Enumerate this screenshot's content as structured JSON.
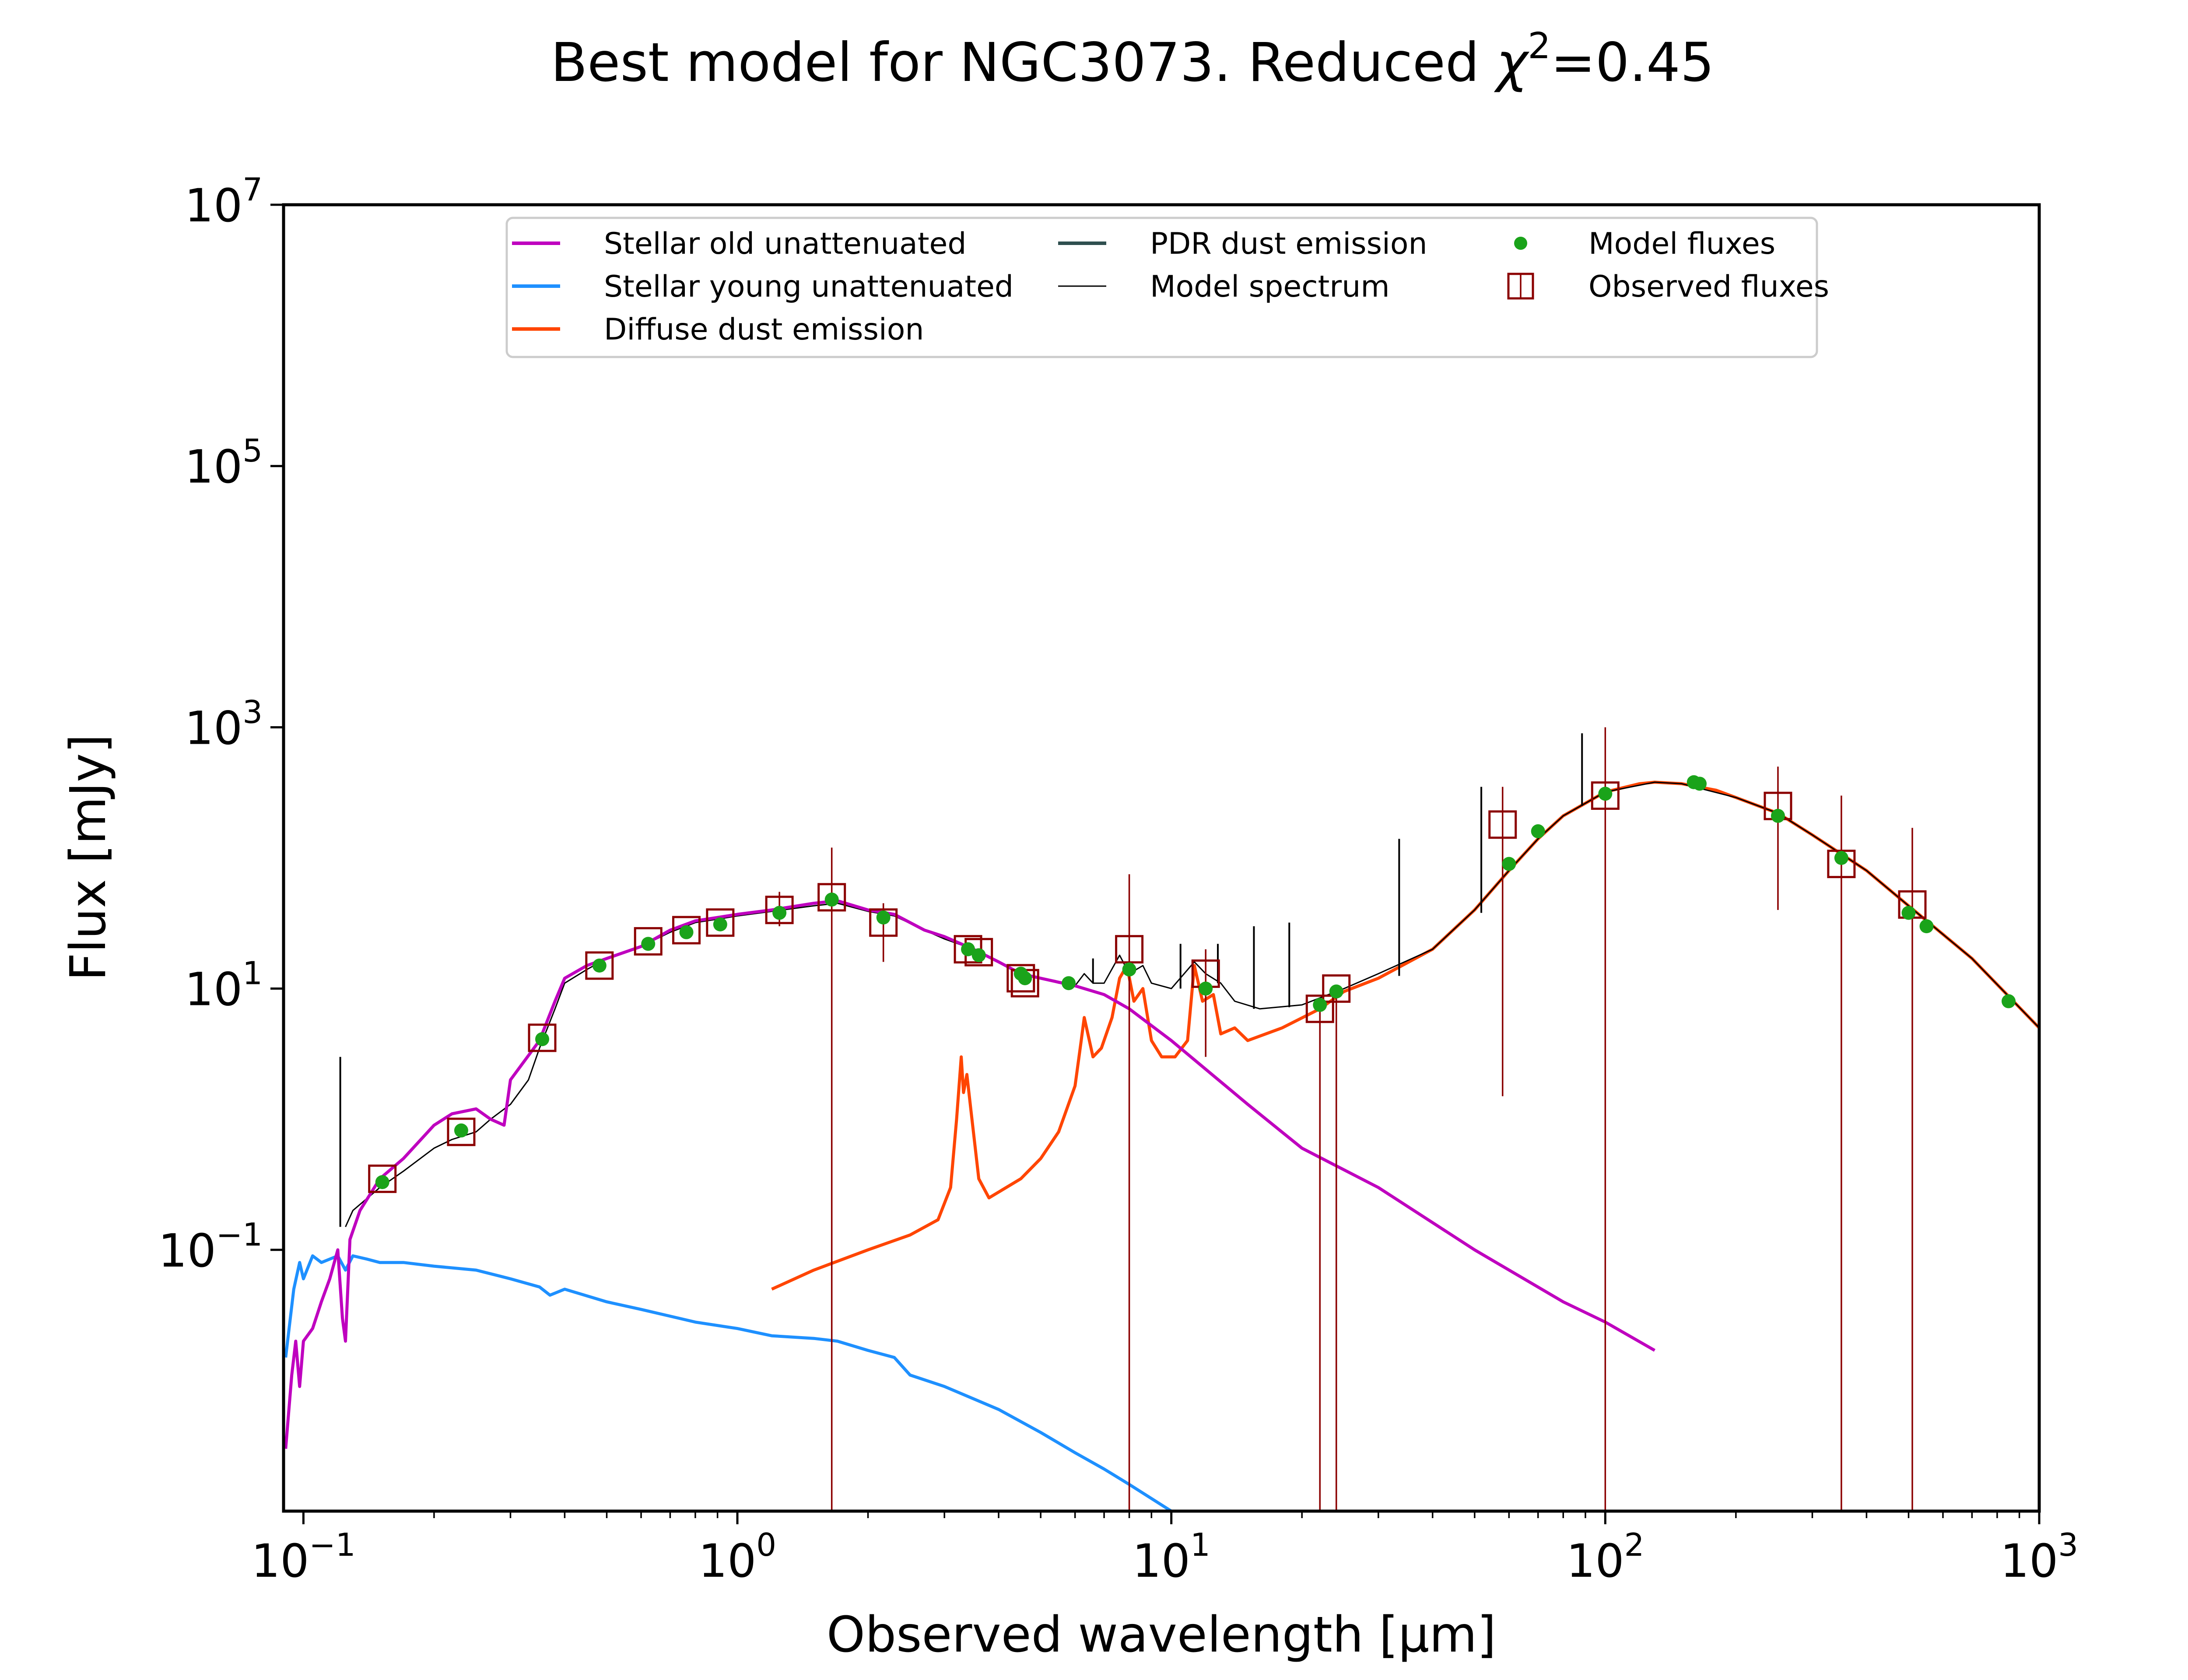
{
  "chart_data": {
    "type": "line",
    "title_prefix": "Best model for NGC3073. Reduced ",
    "title_chi": "χ",
    "title_sup": "2",
    "title_suffix": "=0.45",
    "xlabel": "Observed wavelength [μm]",
    "ylabel": "Flux [mJy]",
    "x_scale": "log",
    "y_scale": "log",
    "xlim": [
      0.09,
      1000
    ],
    "ylim": [
      0.001,
      10000000
    ],
    "grid": false,
    "legend_placement": "top-center",
    "x_ticks": [
      {
        "value": 0.1,
        "base": "10",
        "exp": "−1"
      },
      {
        "value": 1,
        "base": "10",
        "exp": "0"
      },
      {
        "value": 10,
        "base": "10",
        "exp": "1"
      },
      {
        "value": 100,
        "base": "10",
        "exp": "2"
      },
      {
        "value": 1000,
        "base": "10",
        "exp": "3"
      }
    ],
    "y_ticks": [
      {
        "value": 0.1,
        "base": "10",
        "exp": "−1"
      },
      {
        "value": 10,
        "base": "10",
        "exp": "1"
      },
      {
        "value": 1000,
        "base": "10",
        "exp": "3"
      },
      {
        "value": 100000,
        "base": "10",
        "exp": "5"
      },
      {
        "value": 10000000,
        "base": "10",
        "exp": "7"
      }
    ],
    "colors": {
      "stellar_old": "#bf00bf",
      "stellar_young": "#1e90ff",
      "diffuse_dust": "#ff4500",
      "pdr_dust": "#2f4f4f",
      "model_spectrum": "#000000",
      "model_fluxes": "#1aa31a",
      "observed_fluxes": "#8b0000"
    },
    "legend": [
      {
        "key": "stellar_old",
        "label": "Stellar old unattenuated",
        "kind": "line"
      },
      {
        "key": "stellar_young",
        "label": "Stellar young unattenuated",
        "kind": "line"
      },
      {
        "key": "diffuse_dust",
        "label": "Diffuse dust emission",
        "kind": "line"
      },
      {
        "key": "pdr_dust",
        "label": "PDR dust emission",
        "kind": "line"
      },
      {
        "key": "model_spectrum",
        "label": "Model spectrum",
        "kind": "thinline"
      },
      {
        "key": "model_fluxes",
        "label": "Model fluxes",
        "kind": "dot"
      },
      {
        "key": "observed_fluxes",
        "label": "Observed fluxes",
        "kind": "square"
      }
    ],
    "series": [
      {
        "key": "stellar_old",
        "points": [
          [
            0.091,
            0.003
          ],
          [
            0.094,
            0.011
          ],
          [
            0.096,
            0.02
          ],
          [
            0.098,
            0.009
          ],
          [
            0.1,
            0.02
          ],
          [
            0.105,
            0.025
          ],
          [
            0.11,
            0.04
          ],
          [
            0.115,
            0.06
          ],
          [
            0.12,
            0.1
          ],
          [
            0.123,
            0.03
          ],
          [
            0.125,
            0.02
          ],
          [
            0.128,
            0.12
          ],
          [
            0.135,
            0.2
          ],
          [
            0.15,
            0.35
          ],
          [
            0.17,
            0.5
          ],
          [
            0.2,
            0.9
          ],
          [
            0.22,
            1.1
          ],
          [
            0.25,
            1.2
          ],
          [
            0.27,
            1.0
          ],
          [
            0.29,
            0.9
          ],
          [
            0.3,
            2.0
          ],
          [
            0.35,
            4.0
          ],
          [
            0.38,
            8
          ],
          [
            0.4,
            12
          ],
          [
            0.45,
            15
          ],
          [
            0.5,
            17
          ],
          [
            0.6,
            21
          ],
          [
            0.7,
            28
          ],
          [
            0.8,
            33
          ],
          [
            0.9,
            35
          ],
          [
            1.0,
            37
          ],
          [
            1.2,
            40
          ],
          [
            1.5,
            45
          ],
          [
            1.7,
            47
          ],
          [
            2.0,
            40
          ],
          [
            2.3,
            37
          ],
          [
            2.7,
            28
          ],
          [
            3.0,
            25
          ],
          [
            3.5,
            20
          ],
          [
            4.0,
            16
          ],
          [
            4.5,
            13
          ],
          [
            5.0,
            12
          ],
          [
            6.0,
            10.5
          ],
          [
            7.0,
            9
          ],
          [
            8.0,
            7
          ],
          [
            10.0,
            4
          ],
          [
            15.0,
            1.3
          ],
          [
            20.0,
            0.6
          ],
          [
            30.0,
            0.3
          ],
          [
            50.0,
            0.1
          ],
          [
            80.0,
            0.04
          ],
          [
            100.0,
            0.028
          ],
          [
            130.0,
            0.017
          ]
        ]
      },
      {
        "key": "stellar_young",
        "points": [
          [
            0.091,
            0.015
          ],
          [
            0.095,
            0.05
          ],
          [
            0.098,
            0.08
          ],
          [
            0.1,
            0.06
          ],
          [
            0.105,
            0.09
          ],
          [
            0.11,
            0.08
          ],
          [
            0.12,
            0.09
          ],
          [
            0.125,
            0.07
          ],
          [
            0.13,
            0.09
          ],
          [
            0.14,
            0.085
          ],
          [
            0.15,
            0.08
          ],
          [
            0.17,
            0.08
          ],
          [
            0.2,
            0.075
          ],
          [
            0.25,
            0.07
          ],
          [
            0.3,
            0.06
          ],
          [
            0.35,
            0.052
          ],
          [
            0.37,
            0.045
          ],
          [
            0.4,
            0.05
          ],
          [
            0.5,
            0.04
          ],
          [
            0.6,
            0.035
          ],
          [
            0.8,
            0.028
          ],
          [
            1.0,
            0.025
          ],
          [
            1.2,
            0.022
          ],
          [
            1.5,
            0.021
          ],
          [
            1.7,
            0.02
          ],
          [
            2.0,
            0.017
          ],
          [
            2.3,
            0.015
          ],
          [
            2.5,
            0.011
          ],
          [
            3.0,
            0.009
          ],
          [
            4.0,
            0.006
          ],
          [
            5.0,
            0.004
          ],
          [
            6.0,
            0.0028
          ],
          [
            7.0,
            0.0021
          ],
          [
            8.0,
            0.0016
          ],
          [
            10.0,
            0.001
          ]
        ]
      },
      {
        "key": "diffuse_dust",
        "points": [
          [
            1.2,
            0.05
          ],
          [
            1.5,
            0.07
          ],
          [
            2.0,
            0.1
          ],
          [
            2.5,
            0.13
          ],
          [
            2.9,
            0.17
          ],
          [
            3.1,
            0.3
          ],
          [
            3.2,
            1.0
          ],
          [
            3.28,
            3.0
          ],
          [
            3.32,
            1.6
          ],
          [
            3.38,
            2.2
          ],
          [
            3.45,
            1.2
          ],
          [
            3.6,
            0.35
          ],
          [
            3.8,
            0.25
          ],
          [
            4.5,
            0.35
          ],
          [
            5.0,
            0.5
          ],
          [
            5.5,
            0.8
          ],
          [
            6.0,
            1.8
          ],
          [
            6.2,
            4.0
          ],
          [
            6.3,
            6.0
          ],
          [
            6.6,
            3.0
          ],
          [
            6.9,
            3.5
          ],
          [
            7.3,
            6.0
          ],
          [
            7.6,
            12.0
          ],
          [
            7.9,
            15.0
          ],
          [
            8.2,
            8.0
          ],
          [
            8.6,
            10.0
          ],
          [
            9.0,
            4.0
          ],
          [
            9.5,
            3.0
          ],
          [
            10.2,
            3.0
          ],
          [
            10.9,
            4.0
          ],
          [
            11.3,
            15.0
          ],
          [
            11.8,
            8.0
          ],
          [
            12.5,
            9.0
          ],
          [
            13.0,
            4.5
          ],
          [
            14.0,
            5.0
          ],
          [
            15.0,
            4.0
          ],
          [
            18.0,
            5.0
          ],
          [
            22.0,
            7.0
          ],
          [
            25.0,
            9.5
          ],
          [
            30.0,
            12.0
          ],
          [
            40.0,
            20.0
          ],
          [
            50.0,
            40.0
          ],
          [
            60.0,
            80.0
          ],
          [
            70.0,
            140.0
          ],
          [
            80.0,
            210.0
          ],
          [
            100.0,
            320.0
          ],
          [
            120.0,
            370.0
          ],
          [
            130.0,
            380.0
          ],
          [
            150.0,
            370.0
          ],
          [
            180.0,
            330.0
          ],
          [
            200.0,
            290.0
          ],
          [
            250.0,
            220.0
          ],
          [
            300.0,
            150.0
          ],
          [
            400.0,
            80.0
          ],
          [
            500.0,
            43.0
          ],
          [
            700.0,
            17.0
          ],
          [
            1000.0,
            5.0
          ]
        ]
      },
      {
        "key": "model_spectrum",
        "points": [
          [
            0.125,
            0.15
          ],
          [
            0.13,
            0.2
          ],
          [
            0.15,
            0.3
          ],
          [
            0.17,
            0.4
          ],
          [
            0.2,
            0.6
          ],
          [
            0.22,
            0.7
          ],
          [
            0.25,
            0.8
          ],
          [
            0.27,
            1.0
          ],
          [
            0.3,
            1.3
          ],
          [
            0.33,
            2.0
          ],
          [
            0.35,
            3.5
          ],
          [
            0.38,
            7.0
          ],
          [
            0.4,
            11.0
          ],
          [
            0.45,
            14.0
          ],
          [
            0.5,
            17.0
          ],
          [
            0.6,
            21.0
          ],
          [
            0.7,
            27.0
          ],
          [
            0.8,
            32.0
          ],
          [
            0.9,
            34.0
          ],
          [
            1.0,
            36.0
          ],
          [
            1.2,
            39.0
          ],
          [
            1.5,
            43.0
          ],
          [
            1.7,
            45.0
          ],
          [
            2.0,
            39.0
          ],
          [
            2.3,
            36.0
          ],
          [
            2.7,
            28.0
          ],
          [
            3.0,
            24.0
          ],
          [
            3.5,
            20.0
          ],
          [
            4.0,
            16.0
          ],
          [
            4.5,
            13.0
          ],
          [
            5.0,
            12.0
          ],
          [
            5.5,
            11.0
          ],
          [
            6.0,
            10.5
          ],
          [
            6.3,
            13.0
          ],
          [
            6.6,
            11.0
          ],
          [
            7.0,
            11.0
          ],
          [
            7.6,
            18.0
          ],
          [
            8.0,
            13.0
          ],
          [
            8.6,
            15.0
          ],
          [
            9.0,
            11.0
          ],
          [
            10.0,
            10.0
          ],
          [
            11.3,
            16.0
          ],
          [
            12.0,
            13.0
          ],
          [
            13.0,
            11.0
          ],
          [
            14.0,
            8.0
          ],
          [
            16.0,
            7.0
          ],
          [
            20.0,
            7.5
          ],
          [
            25.0,
            10.0
          ],
          [
            30.0,
            13.0
          ],
          [
            40.0,
            20.0
          ],
          [
            50.0,
            40.0
          ],
          [
            60.0,
            80.0
          ],
          [
            70.0,
            140.0
          ],
          [
            80.0,
            210.0
          ],
          [
            100.0,
            320.0
          ],
          [
            130.0,
            380.0
          ],
          [
            150.0,
            370.0
          ],
          [
            200.0,
            290.0
          ],
          [
            250.0,
            220.0
          ],
          [
            300.0,
            150.0
          ],
          [
            400.0,
            80.0
          ],
          [
            500.0,
            43.0
          ],
          [
            700.0,
            17.0
          ],
          [
            1000.0,
            5.0
          ]
        ]
      }
    ],
    "emission_lines": [
      {
        "x": 0.1216,
        "y0": 0.15,
        "y1": 3.0
      },
      {
        "x": 6.6,
        "y0": 11.0,
        "y1": 17.0
      },
      {
        "x": 10.5,
        "y0": 10.0,
        "y1": 22.0
      },
      {
        "x": 12.8,
        "y0": 11.0,
        "y1": 22.0
      },
      {
        "x": 15.5,
        "y0": 7.0,
        "y1": 30.0
      },
      {
        "x": 18.7,
        "y0": 7.2,
        "y1": 32.0
      },
      {
        "x": 33.5,
        "y0": 12.5,
        "y1": 140.0
      },
      {
        "x": 51.8,
        "y0": 38.0,
        "y1": 350.0
      },
      {
        "x": 88.4,
        "y0": 250.0,
        "y1": 900.0
      }
    ],
    "model_fluxes": [
      [
        0.152,
        0.33
      ],
      [
        0.231,
        0.82
      ],
      [
        0.355,
        4.1
      ],
      [
        0.481,
        15.0
      ],
      [
        0.623,
        22.0
      ],
      [
        0.763,
        27.0
      ],
      [
        0.913,
        31.0
      ],
      [
        1.25,
        38.0
      ],
      [
        1.65,
        48.0
      ],
      [
        2.17,
        35.0
      ],
      [
        3.4,
        20.0
      ],
      [
        3.6,
        18.0
      ],
      [
        4.5,
        13.0
      ],
      [
        4.6,
        12.0
      ],
      [
        5.8,
        11.0
      ],
      [
        8.0,
        14.0
      ],
      [
        12.0,
        10.0
      ],
      [
        22.0,
        7.5
      ],
      [
        24.0,
        9.5
      ],
      [
        60.0,
        90.0
      ],
      [
        70.0,
        160.0
      ],
      [
        100.0,
        310.0
      ],
      [
        160.0,
        380.0
      ],
      [
        165.0,
        370.0
      ],
      [
        250.0,
        210.0
      ],
      [
        350.0,
        100.0
      ],
      [
        500.0,
        38.0
      ],
      [
        550.0,
        30.0
      ],
      [
        850.0,
        8.0
      ]
    ],
    "observed_fluxes": [
      {
        "x": 0.152,
        "y": 0.35,
        "lo": 0.35,
        "hi": 0.35
      },
      {
        "x": 0.231,
        "y": 0.8,
        "lo": 0.8,
        "hi": 0.8
      },
      {
        "x": 0.355,
        "y": 4.2,
        "lo": 4.2,
        "hi": 4.2
      },
      {
        "x": 0.481,
        "y": 15.0,
        "lo": 15.0,
        "hi": 15.0
      },
      {
        "x": 0.623,
        "y": 23.0,
        "lo": 23.0,
        "hi": 23.0
      },
      {
        "x": 0.763,
        "y": 28.0,
        "lo": 28.0,
        "hi": 28.0
      },
      {
        "x": 0.913,
        "y": 32.0,
        "lo": 32.0,
        "hi": 32.0
      },
      {
        "x": 1.25,
        "y": 40.0,
        "lo": 30.0,
        "hi": 55.0
      },
      {
        "x": 1.65,
        "y": 50.0,
        "lo": 0.001,
        "hi": 120.0
      },
      {
        "x": 2.17,
        "y": 32.0,
        "lo": 16.0,
        "hi": 45.0
      },
      {
        "x": 3.4,
        "y": 20.0,
        "lo": 20.0,
        "hi": 20.0
      },
      {
        "x": 3.6,
        "y": 19.0,
        "lo": 19.0,
        "hi": 19.0
      },
      {
        "x": 4.5,
        "y": 12.0,
        "lo": 12.0,
        "hi": 12.0
      },
      {
        "x": 4.6,
        "y": 11.0,
        "lo": 11.0,
        "hi": 11.0
      },
      {
        "x": 8.0,
        "y": 20.0,
        "lo": 0.001,
        "hi": 75.0
      },
      {
        "x": 12.0,
        "y": 13.0,
        "lo": 3.0,
        "hi": 20.0
      },
      {
        "x": 22.0,
        "y": 7.0,
        "lo": 0.001,
        "hi": 7.0
      },
      {
        "x": 24.0,
        "y": 10.0,
        "lo": 0.001,
        "hi": 10.0
      },
      {
        "x": 58.0,
        "y": 180.0,
        "lo": 1.5,
        "hi": 350.0
      },
      {
        "x": 100.0,
        "y": 300.0,
        "lo": 0.001,
        "hi": 1000.0
      },
      {
        "x": 250.0,
        "y": 250.0,
        "lo": 40.0,
        "hi": 500.0
      },
      {
        "x": 350.0,
        "y": 90.0,
        "lo": 0.001,
        "hi": 300.0
      },
      {
        "x": 510.0,
        "y": 44.0,
        "lo": 0.001,
        "hi": 170.0
      }
    ]
  }
}
